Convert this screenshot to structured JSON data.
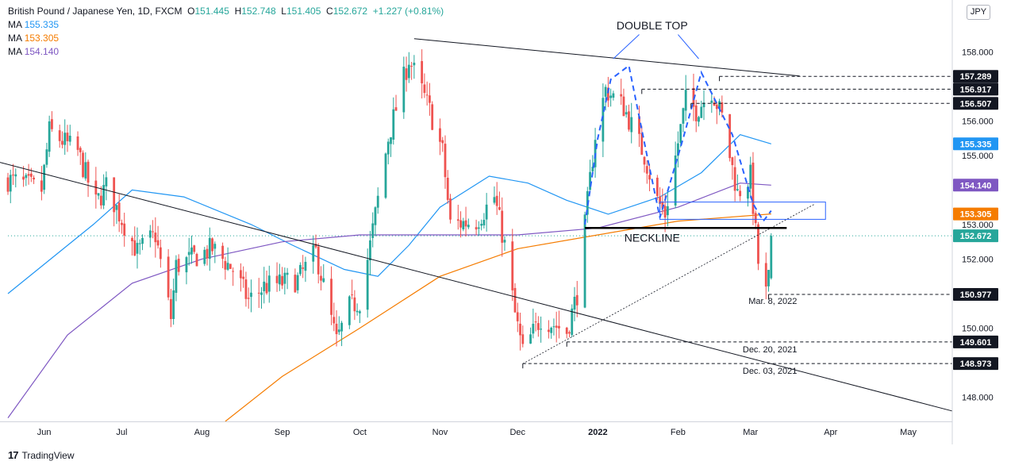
{
  "header": {
    "symbol": "British Pound / Japanese Yen, 1D, FXCM",
    "open_label": "O",
    "open": "151.445",
    "high_label": "H",
    "high": "152.748",
    "low_label": "L",
    "low": "151.405",
    "close_label": "C",
    "close": "152.672",
    "change": "+1.227 (+0.81%)",
    "ma_items": [
      {
        "label": "MA",
        "value": "155.335",
        "color": "#2196f3"
      },
      {
        "label": "MA",
        "value": "153.305",
        "color": "#f57c00"
      },
      {
        "label": "MA",
        "value": "154.140",
        "color": "#7e57c2"
      }
    ]
  },
  "currency_button": "JPY",
  "brand": "TradingView",
  "colors": {
    "up": "#26a69a",
    "down": "#ef5350",
    "ma50": "#2196f3",
    "ma200": "#f57c00",
    "ma100": "#7e57c2",
    "pattern": "#2962ff"
  },
  "chart_data": {
    "type": "candlestick",
    "ylim": [
      147.3,
      159.5
    ],
    "y_ticks": [
      "148.000",
      "150.000",
      "152.000",
      "153.000",
      "155.000",
      "156.000",
      "158.000"
    ],
    "x_ticks": [
      "Jun",
      "Jul",
      "Aug",
      "Sep",
      "Oct",
      "Nov",
      "Dec",
      "2022",
      "Feb",
      "Mar",
      "Apr",
      "May"
    ],
    "x_range": [
      "2021-05-18",
      "2022-05-18"
    ],
    "last_price": "152.672",
    "price_labels": [
      {
        "value": "157.289",
        "style": "dark"
      },
      {
        "value": "156.917",
        "style": "dark"
      },
      {
        "value": "156.507",
        "style": "dark"
      },
      {
        "value": "155.335",
        "style": "ma50"
      },
      {
        "value": "154.140",
        "style": "ma100"
      },
      {
        "value": "153.305",
        "style": "ma200"
      },
      {
        "value": "152.672",
        "style": "last"
      },
      {
        "value": "150.977",
        "style": "dark"
      },
      {
        "value": "149.601",
        "style": "dark"
      },
      {
        "value": "148.973",
        "style": "dark"
      }
    ],
    "annotations": [
      {
        "text": "DOUBLE TOP",
        "date": "2022-01-22",
        "price": 158.65
      },
      {
        "text": "NECKLINE",
        "date": "2022-01-22",
        "price": 152.5
      },
      {
        "text": "Mar. 8, 2022",
        "date": "2022-03-19",
        "price": 150.7
      },
      {
        "text": "Dec. 20, 2021",
        "date": "2022-03-19",
        "price": 149.3
      },
      {
        "text": "Dec. 03, 2021",
        "date": "2022-03-19",
        "price": 148.68
      }
    ],
    "candles": {
      "start": "2021-05-18",
      "trading_days": "Mon-Fri",
      "close_path": [
        [
          "2021-05-18",
          154.3
        ],
        [
          "2021-05-31",
          154.0
        ],
        [
          "2021-06-03",
          155.7
        ],
        [
          "2021-06-14",
          155.1
        ],
        [
          "2021-06-21",
          153.6
        ],
        [
          "2021-06-25",
          154.1
        ],
        [
          "2021-07-07",
          152.2
        ],
        [
          "2021-07-14",
          152.7
        ],
        [
          "2021-07-20",
          150.3
        ],
        [
          "2021-07-22",
          151.8
        ],
        [
          "2021-08-05",
          152.3
        ],
        [
          "2021-08-13",
          151.7
        ],
        [
          "2021-08-19",
          150.8
        ],
        [
          "2021-08-25",
          151.2
        ],
        [
          "2021-09-07",
          151.4
        ],
        [
          "2021-09-14",
          152.2
        ],
        [
          "2021-09-22",
          149.6
        ],
        [
          "2021-09-27",
          150.6
        ],
        [
          "2021-10-01",
          150.8
        ],
        [
          "2021-10-05",
          152.4
        ],
        [
          "2021-10-12",
          155.5
        ],
        [
          "2021-10-20",
          157.8
        ],
        [
          "2021-10-28",
          156.3
        ],
        [
          "2021-11-02",
          155.1
        ],
        [
          "2021-11-05",
          153.0
        ],
        [
          "2021-11-15",
          153.1
        ],
        [
          "2021-11-22",
          153.8
        ],
        [
          "2021-11-26",
          152.4
        ],
        [
          "2021-11-30",
          150.4
        ],
        [
          "2021-12-03",
          149.3
        ],
        [
          "2021-12-10",
          150.3
        ],
        [
          "2021-12-20",
          149.9
        ],
        [
          "2021-12-24",
          151.0
        ],
        [
          "2021-12-31",
          155.6
        ],
        [
          "2022-01-04",
          156.9
        ],
        [
          "2022-01-11",
          156.4
        ],
        [
          "2022-01-19",
          155.0
        ],
        [
          "2022-01-24",
          153.7
        ],
        [
          "2022-01-27",
          153.3
        ],
        [
          "2022-02-04",
          156.6
        ],
        [
          "2022-02-08",
          156.3
        ],
        [
          "2022-02-14",
          156.9
        ],
        [
          "2022-02-18",
          156.1
        ],
        [
          "2022-02-24",
          153.9
        ],
        [
          "2022-03-01",
          154.4
        ],
        [
          "2022-03-04",
          151.9
        ],
        [
          "2022-03-07",
          151.0
        ],
        [
          "2022-03-08",
          151.44
        ],
        [
          "2022-03-09",
          152.672
        ]
      ]
    },
    "moving_averages": [
      {
        "label": "MA",
        "value": 155.335,
        "color": "#2196f3",
        "points": [
          [
            "2021-05-18",
            151.0
          ],
          [
            "2021-06-20",
            153.0
          ],
          [
            "2021-07-05",
            154.0
          ],
          [
            "2021-07-25",
            153.8
          ],
          [
            "2021-08-20",
            153.0
          ],
          [
            "2021-09-05",
            152.4
          ],
          [
            "2021-09-25",
            151.7
          ],
          [
            "2021-10-08",
            151.5
          ],
          [
            "2021-10-20",
            152.4
          ],
          [
            "2021-11-01",
            153.5
          ],
          [
            "2021-11-20",
            154.4
          ],
          [
            "2021-12-05",
            154.2
          ],
          [
            "2021-12-20",
            153.7
          ],
          [
            "2022-01-05",
            153.3
          ],
          [
            "2022-01-25",
            153.8
          ],
          [
            "2022-02-10",
            154.5
          ],
          [
            "2022-02-25",
            155.6
          ],
          [
            "2022-03-09",
            155.335
          ]
        ]
      },
      {
        "label": "MA",
        "value": 153.305,
        "color": "#f57c00",
        "points": [
          [
            "2021-08-10",
            147.3
          ],
          [
            "2021-09-01",
            148.6
          ],
          [
            "2021-10-01",
            150.0
          ],
          [
            "2021-11-01",
            151.5
          ],
          [
            "2021-12-01",
            152.3
          ],
          [
            "2022-01-01",
            152.7
          ],
          [
            "2022-02-01",
            153.1
          ],
          [
            "2022-03-09",
            153.305
          ]
        ]
      },
      {
        "label": "MA",
        "value": 154.14,
        "color": "#7e57c2",
        "points": [
          [
            "2021-05-18",
            147.4
          ],
          [
            "2021-06-10",
            149.8
          ],
          [
            "2021-07-05",
            151.3
          ],
          [
            "2021-08-01",
            152.0
          ],
          [
            "2021-09-01",
            152.5
          ],
          [
            "2021-10-01",
            152.7
          ],
          [
            "2021-11-01",
            152.7
          ],
          [
            "2021-12-01",
            152.7
          ],
          [
            "2022-01-01",
            152.9
          ],
          [
            "2022-02-01",
            153.5
          ],
          [
            "2022-02-25",
            154.2
          ],
          [
            "2022-03-09",
            154.14
          ]
        ]
      }
    ]
  }
}
